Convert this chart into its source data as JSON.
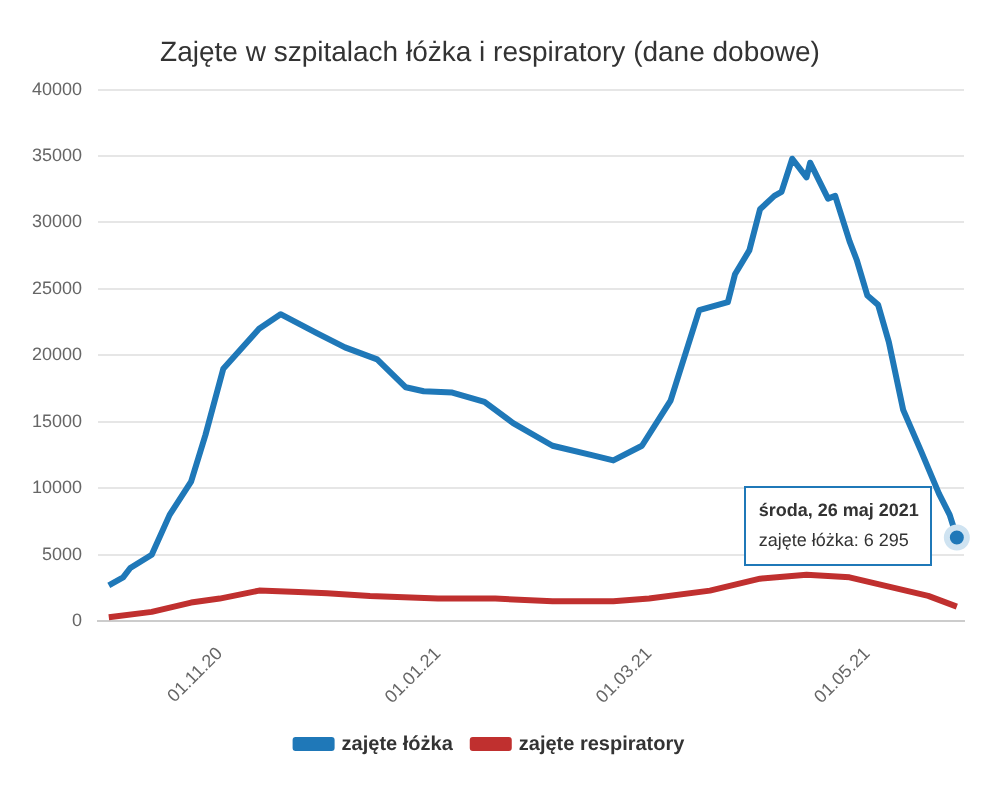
{
  "chart_data": {
    "type": "line",
    "title": "Zajęte w szpitalach łóżka i respiratory (dane dobowe)",
    "series": [
      {
        "name": "zajęte łóżka",
        "color": "#1f78b8",
        "x": [
          "2020-10-01",
          "2020-10-05",
          "2020-10-07",
          "2020-10-13",
          "2020-10-18",
          "2020-10-24",
          "2020-10-28",
          "2020-11-02",
          "2020-11-12",
          "2020-11-18",
          "2020-11-28",
          "2020-12-06",
          "2020-12-15",
          "2020-12-23",
          "2020-12-28",
          "2021-01-05",
          "2021-01-14",
          "2021-01-22",
          "2021-02-02",
          "2021-02-13",
          "2021-02-19",
          "2021-02-27",
          "2021-03-07",
          "2021-03-15",
          "2021-03-23",
          "2021-03-25",
          "2021-03-29",
          "2021-04-01",
          "2021-04-05",
          "2021-04-07",
          "2021-04-10",
          "2021-04-14",
          "2021-04-15",
          "2021-04-20",
          "2021-04-22",
          "2021-04-26",
          "2021-04-28",
          "2021-05-01",
          "2021-05-04",
          "2021-05-07",
          "2021-05-11",
          "2021-05-16",
          "2021-05-21",
          "2021-05-24",
          "2021-05-26"
        ],
        "values": [
          2700,
          3300,
          4000,
          5000,
          8000,
          10500,
          14000,
          19000,
          22000,
          23100,
          21700,
          20600,
          19700,
          17600,
          17300,
          17200,
          16500,
          14900,
          13200,
          12500,
          12100,
          13200,
          16600,
          23400,
          24000,
          26100,
          27900,
          31000,
          32000,
          32300,
          34800,
          33400,
          34500,
          31800,
          32000,
          28600,
          27200,
          24500,
          23800,
          21000,
          15900,
          12800,
          9600,
          8000,
          6295
        ]
      },
      {
        "name": "zajęte respiratory",
        "color": "#c0302f",
        "x": [
          "2020-10-01",
          "2020-10-13",
          "2020-10-24",
          "2020-11-01",
          "2020-11-12",
          "2020-11-23",
          "2020-12-01",
          "2020-12-13",
          "2021-01-01",
          "2021-01-17",
          "2021-02-02",
          "2021-02-19",
          "2021-03-01",
          "2021-03-18",
          "2021-04-01",
          "2021-04-14",
          "2021-04-26",
          "2021-05-07",
          "2021-05-18",
          "2021-05-26"
        ],
        "values": [
          300,
          700,
          1400,
          1700,
          2300,
          2200,
          2100,
          1900,
          1700,
          1700,
          1500,
          1500,
          1700,
          2300,
          3200,
          3500,
          3300,
          2600,
          1900,
          1100
        ]
      }
    ],
    "xlim": [
      "2020-09-28",
      "2021-05-28"
    ],
    "xticks": [
      {
        "value": "2020-11-01",
        "label": "01.11.20"
      },
      {
        "value": "2021-01-01",
        "label": "01.01.21"
      },
      {
        "value": "2021-03-01",
        "label": "01.03.21"
      },
      {
        "value": "2021-05-01",
        "label": "01.05.21"
      }
    ],
    "ylim": [
      0,
      40000
    ],
    "yticks": [
      0,
      5000,
      10000,
      15000,
      20000,
      25000,
      30000,
      35000,
      40000
    ],
    "annotations": [
      "środa, 26 maj 2021",
      "zajęte łóżka: 6 295"
    ],
    "grid": "y",
    "legend": "bottom",
    "marker": "none",
    "line_style": "solid"
  }
}
